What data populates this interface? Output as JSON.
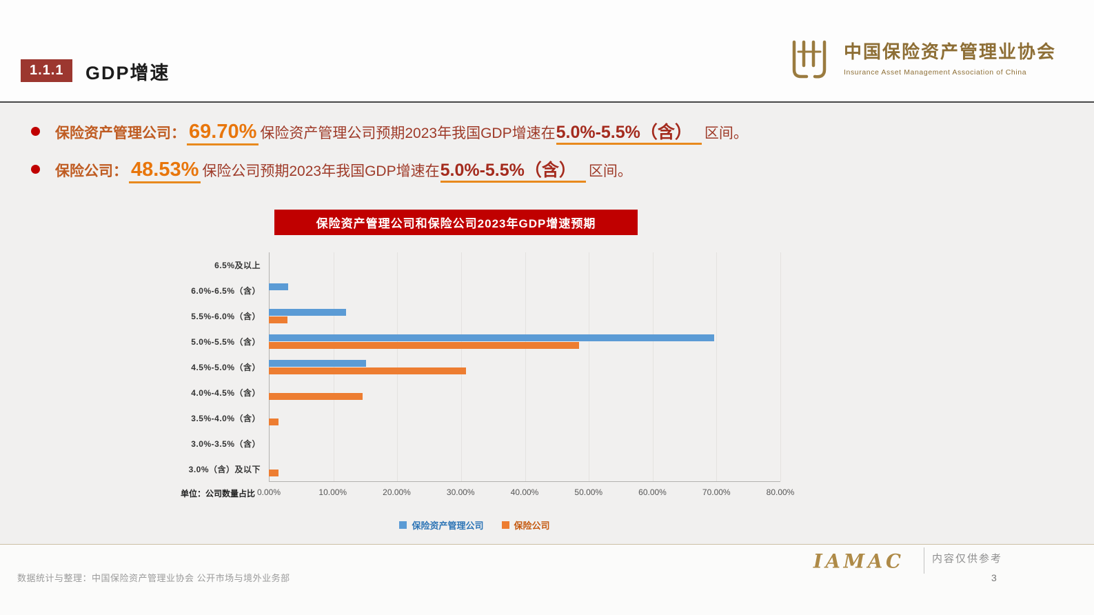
{
  "slide": {
    "badge": "1.1.1",
    "title": "GDP增速",
    "page_number": "3"
  },
  "logo": {
    "name_cn": "中国保险资产管理业协会",
    "name_en": "Insurance Asset Management Association of China",
    "monogram": "IAMAC"
  },
  "bullets": [
    {
      "label": "保险资产管理公司：",
      "value": "69.70%",
      "body": "保险资产管理公司预期2023年我国GDP增速在",
      "range": "5.0%-5.5%（含）",
      "tail": "区间。"
    },
    {
      "label": "保险公司：",
      "value": "48.53%",
      "body": "保险公司预期2023年我国GDP增速在",
      "range": "5.0%-5.5%（含）",
      "tail": "区间。"
    }
  ],
  "chart_data": {
    "type": "bar",
    "orientation": "horizontal",
    "title": "保险资产管理公司和保险公司2023年GDP增速预期",
    "unit_label": "单位：公司数量占比",
    "categories": [
      "6.5%及以上",
      "6.0%-6.5%（含）",
      "5.5%-6.0%（含）",
      "5.0%-5.5%（含）",
      "4.5%-5.0%（含）",
      "4.0%-4.5%（含）",
      "3.5%-4.0%（含）",
      "3.0%-3.5%（含）",
      "3.0%（含）及以下"
    ],
    "series": [
      {
        "name": "保险资产管理公司",
        "color": "#5B9BD5",
        "label_color": "#2E75B6",
        "values": [
          0,
          3.03,
          12.12,
          69.7,
          15.15,
          0,
          0,
          0,
          0
        ]
      },
      {
        "name": "保险公司",
        "color": "#ED7D31",
        "label_color": "#C55A11",
        "values": [
          0,
          0,
          2.94,
          48.53,
          30.88,
          14.71,
          1.47,
          0,
          1.47
        ]
      }
    ],
    "x_ticks": [
      "0.00%",
      "10.00%",
      "20.00%",
      "30.00%",
      "40.00%",
      "50.00%",
      "60.00%",
      "70.00%",
      "80.00%"
    ],
    "xlim": [
      0,
      80
    ],
    "legend_position": "bottom",
    "grid": false
  },
  "footer": {
    "source": "数据统计与整理：中国保险资产管理业协会 公开市场与境外业务部",
    "disclaimer": "内容仅供参考"
  },
  "colors": {
    "accent_red": "#C00000",
    "badge_red": "#9C372F",
    "body_text_red": "#9E3A28",
    "highlight_orange": "#E8760C",
    "logo_gold": "#9A7B3F",
    "bar_blue": "#5B9BD5",
    "bar_orange": "#ED7D31"
  }
}
